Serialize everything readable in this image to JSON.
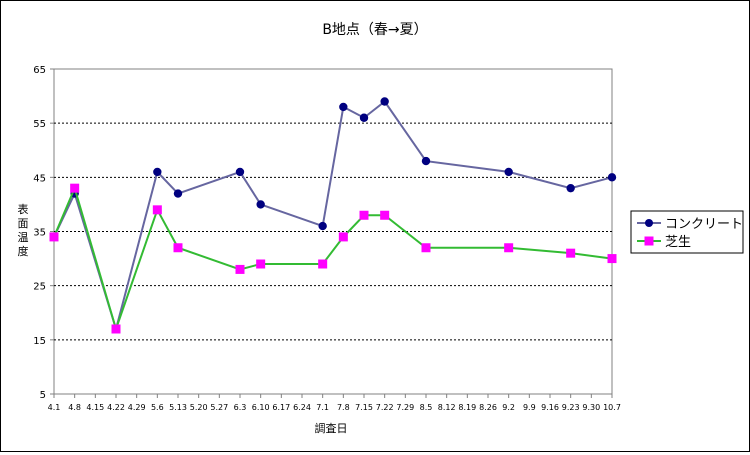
{
  "chart_data": {
    "type": "line",
    "title": "B地点（春→夏）",
    "xlabel": "調査日",
    "ylabel": "表面温度",
    "ylim": [
      5,
      65
    ],
    "yticks": [
      5,
      15,
      25,
      35,
      45,
      55,
      65
    ],
    "grid": "horizontal-dashed",
    "legend_position": "right",
    "x_tick_labels": [
      "4.1",
      "4.8",
      "4.15",
      "4.22",
      "4.29",
      "5.6",
      "5.13",
      "5.20",
      "5.27",
      "6.3",
      "6.10",
      "6.17",
      "6.24",
      "7.1",
      "7.8",
      "7.15",
      "7.22",
      "7.29",
      "8.5",
      "8.12",
      "8.19",
      "8.26",
      "9.2",
      "9.9",
      "9.16",
      "9.23",
      "9.30",
      "10.7"
    ],
    "series": [
      {
        "name": "コンクリート",
        "color": "#6666a0",
        "marker_color": "#000080",
        "marker": "circle",
        "points": [
          {
            "x": "4.1",
            "y": 34
          },
          {
            "x": "4.8",
            "y": 42
          },
          {
            "x": "4.22",
            "y": 17
          },
          {
            "x": "5.6",
            "y": 46
          },
          {
            "x": "5.13",
            "y": 42
          },
          {
            "x": "6.3",
            "y": 46
          },
          {
            "x": "6.10",
            "y": 40
          },
          {
            "x": "7.1",
            "y": 36
          },
          {
            "x": "7.8",
            "y": 58
          },
          {
            "x": "7.15",
            "y": 56
          },
          {
            "x": "7.22",
            "y": 59
          },
          {
            "x": "8.5",
            "y": 48
          },
          {
            "x": "9.2",
            "y": 46
          },
          {
            "x": "9.23",
            "y": 43
          },
          {
            "x": "10.7",
            "y": 45
          }
        ]
      },
      {
        "name": "芝生",
        "color": "#33bb33",
        "marker_color": "#ff00ff",
        "marker": "square",
        "points": [
          {
            "x": "4.1",
            "y": 34
          },
          {
            "x": "4.8",
            "y": 43
          },
          {
            "x": "4.22",
            "y": 17
          },
          {
            "x": "5.6",
            "y": 39
          },
          {
            "x": "5.13",
            "y": 32
          },
          {
            "x": "6.3",
            "y": 28
          },
          {
            "x": "6.10",
            "y": 29
          },
          {
            "x": "7.1",
            "y": 29
          },
          {
            "x": "7.8",
            "y": 34
          },
          {
            "x": "7.15",
            "y": 38
          },
          {
            "x": "7.22",
            "y": 38
          },
          {
            "x": "8.5",
            "y": 32
          },
          {
            "x": "9.2",
            "y": 32
          },
          {
            "x": "9.23",
            "y": 31
          },
          {
            "x": "10.7",
            "y": 30
          }
        ]
      }
    ]
  }
}
